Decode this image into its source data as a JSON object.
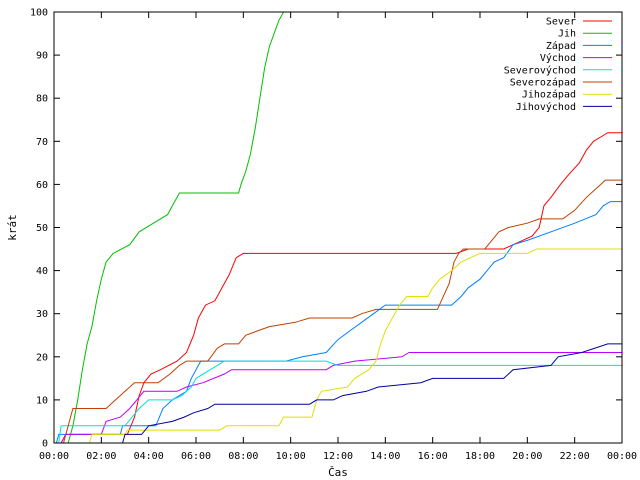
{
  "chart_data": {
    "type": "line",
    "xlabel": "Čas",
    "ylabel": "krát",
    "ylim": [
      0,
      100
    ],
    "yticks": [
      0,
      10,
      20,
      30,
      40,
      50,
      60,
      70,
      80,
      90,
      100
    ],
    "xlim": [
      0,
      24
    ],
    "xticks": [
      {
        "v": 0,
        "label": "00:00"
      },
      {
        "v": 2,
        "label": "02:00"
      },
      {
        "v": 4,
        "label": "04:00"
      },
      {
        "v": 6,
        "label": "06:00"
      },
      {
        "v": 8,
        "label": "08:00"
      },
      {
        "v": 10,
        "label": "10:00"
      },
      {
        "v": 12,
        "label": "12:00"
      },
      {
        "v": 14,
        "label": "14:00"
      },
      {
        "v": 16,
        "label": "16:00"
      },
      {
        "v": 18,
        "label": "18:00"
      },
      {
        "v": 20,
        "label": "20:00"
      },
      {
        "v": 22,
        "label": "22:00"
      },
      {
        "v": 24,
        "label": "00:00"
      }
    ],
    "grid": false,
    "legend_position": "top-right",
    "series": [
      {
        "name": "Sever",
        "color": "#ff0000",
        "points": [
          [
            0,
            0
          ],
          [
            0.3,
            0
          ],
          [
            0.5,
            2
          ],
          [
            3.1,
            2
          ],
          [
            3.4,
            6
          ],
          [
            3.6,
            11
          ],
          [
            3.8,
            14
          ],
          [
            4.1,
            16
          ],
          [
            4.5,
            17
          ],
          [
            5.2,
            19
          ],
          [
            5.6,
            21
          ],
          [
            5.9,
            25
          ],
          [
            6.1,
            29
          ],
          [
            6.4,
            32
          ],
          [
            6.8,
            33
          ],
          [
            7.1,
            36
          ],
          [
            7.4,
            39
          ],
          [
            7.7,
            43
          ],
          [
            8.0,
            44
          ],
          [
            17.0,
            44
          ],
          [
            17.5,
            45
          ],
          [
            19.0,
            45
          ],
          [
            19.4,
            46
          ],
          [
            19.8,
            47
          ],
          [
            20.2,
            48
          ],
          [
            20.5,
            50
          ],
          [
            20.7,
            55
          ],
          [
            21.0,
            57
          ],
          [
            21.4,
            60
          ],
          [
            21.7,
            62
          ],
          [
            22.2,
            65
          ],
          [
            22.5,
            68
          ],
          [
            22.8,
            70
          ],
          [
            23.1,
            71
          ],
          [
            23.4,
            72
          ],
          [
            24,
            72
          ]
        ]
      },
      {
        "name": "Jih",
        "color": "#00c000",
        "points": [
          [
            0,
            0
          ],
          [
            0.6,
            0
          ],
          [
            0.8,
            4
          ],
          [
            1.0,
            10
          ],
          [
            1.2,
            17
          ],
          [
            1.4,
            23
          ],
          [
            1.6,
            27
          ],
          [
            1.8,
            33
          ],
          [
            2.0,
            38
          ],
          [
            2.2,
            42
          ],
          [
            2.5,
            44
          ],
          [
            3.2,
            46
          ],
          [
            3.6,
            49
          ],
          [
            4.2,
            51
          ],
          [
            4.8,
            53
          ],
          [
            5.0,
            55
          ],
          [
            5.3,
            58
          ],
          [
            7.8,
            58
          ],
          [
            7.9,
            60
          ],
          [
            8.1,
            63
          ],
          [
            8.3,
            67
          ],
          [
            8.5,
            73
          ],
          [
            8.7,
            80
          ],
          [
            8.9,
            87
          ],
          [
            9.1,
            92
          ],
          [
            9.3,
            95
          ],
          [
            9.5,
            98
          ],
          [
            9.7,
            100
          ]
        ]
      },
      {
        "name": "Západ",
        "color": "#0080ff",
        "points": [
          [
            0,
            0
          ],
          [
            0.1,
            0
          ],
          [
            0.2,
            2
          ],
          [
            2.8,
            2
          ],
          [
            2.9,
            4
          ],
          [
            4.3,
            4
          ],
          [
            4.6,
            8
          ],
          [
            5.0,
            10
          ],
          [
            5.6,
            12
          ],
          [
            5.8,
            15
          ],
          [
            6.2,
            19
          ],
          [
            9.8,
            19
          ],
          [
            10.5,
            20
          ],
          [
            11.5,
            21
          ],
          [
            12.0,
            24
          ],
          [
            12.5,
            26
          ],
          [
            13.0,
            28
          ],
          [
            13.5,
            30
          ],
          [
            14.0,
            32
          ],
          [
            16.8,
            32
          ],
          [
            17.2,
            34
          ],
          [
            17.5,
            36
          ],
          [
            18.0,
            38
          ],
          [
            18.3,
            40
          ],
          [
            18.6,
            42
          ],
          [
            19.0,
            43
          ],
          [
            19.4,
            46
          ],
          [
            20.0,
            47
          ],
          [
            21.0,
            49
          ],
          [
            22.0,
            51
          ],
          [
            22.9,
            53
          ],
          [
            23.2,
            55
          ],
          [
            23.5,
            56
          ],
          [
            24,
            56
          ]
        ]
      },
      {
        "name": "Východ",
        "color": "#c000ff",
        "points": [
          [
            0,
            0
          ],
          [
            0.3,
            0
          ],
          [
            0.5,
            2
          ],
          [
            2.0,
            2
          ],
          [
            2.2,
            5
          ],
          [
            2.8,
            6
          ],
          [
            3.2,
            8
          ],
          [
            3.5,
            10
          ],
          [
            3.8,
            12
          ],
          [
            5.2,
            12
          ],
          [
            5.6,
            13
          ],
          [
            6.3,
            14
          ],
          [
            7.2,
            16
          ],
          [
            7.5,
            17
          ],
          [
            11.5,
            17
          ],
          [
            11.8,
            18
          ],
          [
            12.7,
            19
          ],
          [
            14.7,
            20
          ],
          [
            15.0,
            21
          ],
          [
            24,
            21
          ]
        ]
      },
      {
        "name": "Severovýchod",
        "color": "#00e0e0",
        "points": [
          [
            0,
            0
          ],
          [
            0.2,
            0
          ],
          [
            0.3,
            4
          ],
          [
            3.0,
            4
          ],
          [
            3.3,
            6
          ],
          [
            3.6,
            8
          ],
          [
            4.0,
            10
          ],
          [
            5.0,
            10
          ],
          [
            5.4,
            11
          ],
          [
            5.8,
            13
          ],
          [
            6.0,
            15
          ],
          [
            6.6,
            17
          ],
          [
            6.9,
            18
          ],
          [
            7.2,
            19
          ],
          [
            11.5,
            19
          ],
          [
            12.0,
            18
          ],
          [
            24,
            18
          ]
        ]
      },
      {
        "name": "Severozápad",
        "color": "#c04000",
        "points": [
          [
            0,
            0
          ],
          [
            0.4,
            0
          ],
          [
            0.6,
            4
          ],
          [
            0.8,
            8
          ],
          [
            2.2,
            8
          ],
          [
            2.6,
            10
          ],
          [
            3.0,
            12
          ],
          [
            3.4,
            14
          ],
          [
            4.4,
            14
          ],
          [
            4.9,
            16
          ],
          [
            5.3,
            18
          ],
          [
            5.6,
            19
          ],
          [
            6.5,
            19
          ],
          [
            6.9,
            22
          ],
          [
            7.2,
            23
          ],
          [
            7.8,
            23
          ],
          [
            8.1,
            25
          ],
          [
            8.6,
            26
          ],
          [
            9.1,
            27
          ],
          [
            10.2,
            28
          ],
          [
            10.8,
            29
          ],
          [
            12.6,
            29
          ],
          [
            13.0,
            30
          ],
          [
            13.6,
            31
          ],
          [
            14.8,
            31
          ],
          [
            16.2,
            31
          ],
          [
            16.7,
            37
          ],
          [
            16.9,
            42
          ],
          [
            17.1,
            44
          ],
          [
            17.3,
            45
          ],
          [
            18.2,
            45
          ],
          [
            18.5,
            47
          ],
          [
            18.8,
            49
          ],
          [
            19.2,
            50
          ],
          [
            20.0,
            51
          ],
          [
            20.5,
            52
          ],
          [
            21.5,
            52
          ],
          [
            22.0,
            54
          ],
          [
            22.5,
            57
          ],
          [
            22.9,
            59
          ],
          [
            23.3,
            61
          ],
          [
            24,
            61
          ]
        ]
      },
      {
        "name": "Jihozápad",
        "color": "#e0e000",
        "points": [
          [
            0,
            0
          ],
          [
            1.5,
            0
          ],
          [
            1.6,
            2
          ],
          [
            3.0,
            2
          ],
          [
            3.1,
            3
          ],
          [
            7.0,
            3
          ],
          [
            7.3,
            4
          ],
          [
            9.5,
            4
          ],
          [
            9.7,
            6
          ],
          [
            10.9,
            6
          ],
          [
            11.1,
            10
          ],
          [
            11.3,
            12
          ],
          [
            12.4,
            13
          ],
          [
            12.7,
            15
          ],
          [
            13.3,
            17
          ],
          [
            13.6,
            19
          ],
          [
            13.8,
            23
          ],
          [
            14.0,
            26
          ],
          [
            14.3,
            29
          ],
          [
            14.6,
            32
          ],
          [
            14.9,
            34
          ],
          [
            15.8,
            34
          ],
          [
            16.0,
            36
          ],
          [
            16.3,
            38
          ],
          [
            16.8,
            40
          ],
          [
            17.2,
            42
          ],
          [
            17.6,
            43
          ],
          [
            18.0,
            44
          ],
          [
            20.0,
            44
          ],
          [
            20.4,
            45
          ],
          [
            24,
            45
          ]
        ]
      },
      {
        "name": "Jihovýchod",
        "color": "#0000a0",
        "points": [
          [
            0,
            0
          ],
          [
            2.9,
            0
          ],
          [
            3.0,
            2
          ],
          [
            3.7,
            2
          ],
          [
            4.0,
            4
          ],
          [
            5.0,
            5
          ],
          [
            5.5,
            6
          ],
          [
            5.9,
            7
          ],
          [
            6.5,
            8
          ],
          [
            6.8,
            9
          ],
          [
            10.8,
            9
          ],
          [
            11.1,
            10
          ],
          [
            11.8,
            10
          ],
          [
            12.2,
            11
          ],
          [
            13.2,
            12
          ],
          [
            13.7,
            13
          ],
          [
            15.5,
            14
          ],
          [
            16.0,
            15
          ],
          [
            19.0,
            15
          ],
          [
            19.4,
            17
          ],
          [
            21.0,
            18
          ],
          [
            21.3,
            20
          ],
          [
            22.3,
            21
          ],
          [
            23.4,
            23
          ],
          [
            24,
            23
          ]
        ]
      }
    ]
  }
}
